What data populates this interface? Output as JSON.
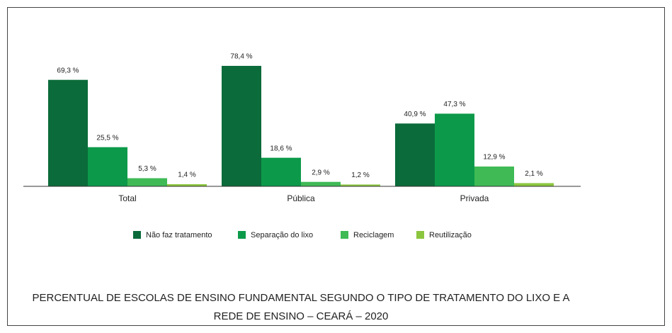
{
  "chart_data": {
    "type": "bar",
    "title": [
      "PERCENTUAL DE ESCOLAS DE ENSINO FUNDAMENTAL SEGUNDO O TIPO DE TRATAMENTO DO LIXO E A",
      "REDE DE ENSINO – CEARÁ – 2020"
    ],
    "categories": [
      "Total",
      "Pública",
      "Privada"
    ],
    "series": [
      {
        "name": "Não faz tratamento",
        "color": "#0b6b3a",
        "values": [
          69.3,
          78.4,
          40.9
        ],
        "value_labels": [
          "69,3 %",
          "78,4 %",
          "40,9 %"
        ]
      },
      {
        "name": "Separação do lixo",
        "color": "#0c9a4a",
        "values": [
          25.5,
          18.6,
          47.3
        ],
        "value_labels": [
          "25,5 %",
          "18,6 %",
          "47,3 %"
        ]
      },
      {
        "name": "Reciclagem",
        "color": "#3fba55",
        "values": [
          5.3,
          2.9,
          12.9
        ],
        "value_labels": [
          "5,3 %",
          "2,9 %",
          "12,9 %"
        ]
      },
      {
        "name": "Reutilização",
        "color": "#8cc63f",
        "values": [
          1.4,
          1.2,
          2.1
        ],
        "value_labels": [
          "1,4 %",
          "1,2 %",
          "2,1 %"
        ]
      }
    ],
    "ylim": [
      0,
      80
    ]
  }
}
